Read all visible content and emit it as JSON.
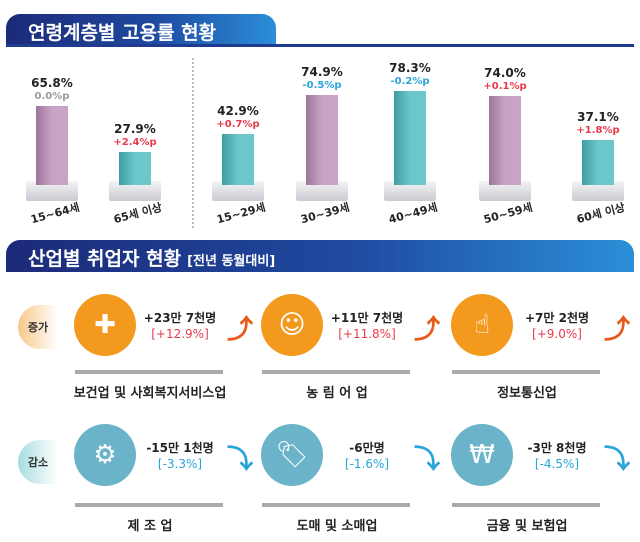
{
  "section1": {
    "title": "연령계층별 고용률 현황"
  },
  "section2": {
    "title": "산업별 취업자 현황",
    "subtitle": "[전년 동월대비]"
  },
  "colors": {
    "increase": "#e83a4b",
    "decrease": "#2aa5d9",
    "neutral": "#999999",
    "pink_bar": "#c9a3c6",
    "teal_bar": "#6cc7cb",
    "orange": "#f39a1e",
    "blue_icon": "#6ab3c8"
  },
  "chart_data": {
    "type": "bar",
    "title": "연령계층별 고용률 현황",
    "categories": [
      "15~64세",
      "65세 이상",
      "15~29세",
      "30~39세",
      "40~49세",
      "50~59세",
      "60세 이상"
    ],
    "values": [
      65.8,
      27.9,
      42.9,
      74.9,
      78.3,
      74.0,
      37.1
    ],
    "value_labels": [
      "65.8%",
      "27.9%",
      "42.9%",
      "74.9%",
      "78.3%",
      "74.0%",
      "37.1%"
    ],
    "changes": [
      "0.0%p",
      "+2.4%p",
      "+0.7%p",
      "-0.5%p",
      "-0.2%p",
      "+0.1%p",
      "+1.8%p"
    ],
    "bar_colors": [
      "pink",
      "teal",
      "teal",
      "pink",
      "teal",
      "pink",
      "teal"
    ],
    "unit": "%"
  },
  "industry": {
    "increase_label": "증가",
    "decrease_label": "감소",
    "increase": [
      {
        "name": "보건업 및 사회복지서비스업",
        "amount": "+23만 7천명",
        "pct": "[+12.9%]",
        "icon": "medical-kit-heart"
      },
      {
        "name": "농 림 어 업",
        "amount": "+11만 7천명",
        "pct": "[+11.8%]",
        "icon": "farmer"
      },
      {
        "name": "정보통신업",
        "amount": "+7만 2천명",
        "pct": "[+9.0%]",
        "icon": "mouse-click"
      }
    ],
    "decrease": [
      {
        "name": "제 조 업",
        "amount": "-15만 1천명",
        "pct": "[-3.3%]",
        "icon": "gear-person"
      },
      {
        "name": "도매 및 소매업",
        "amount": "-6만명",
        "pct": "[-1.6%]",
        "icon": "sale-tag-shirt"
      },
      {
        "name": "금융 및 보험업",
        "amount": "-3만 8천명",
        "pct": "[-4.5%]",
        "icon": "money-bills"
      }
    ]
  }
}
